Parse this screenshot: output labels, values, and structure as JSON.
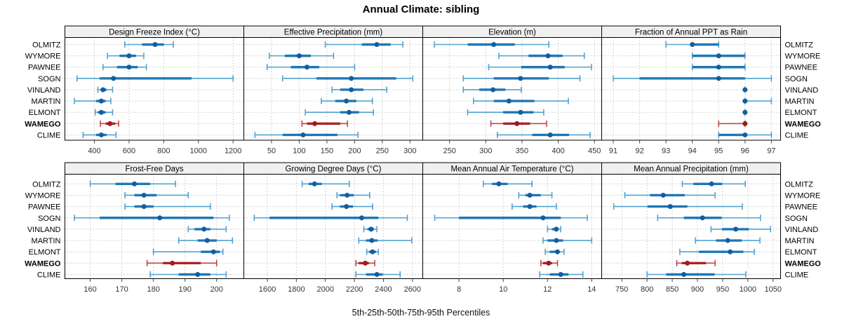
{
  "title": "Annual Climate: sibling",
  "caption": "5th-25th-50th-75th-95th Percentiles",
  "sites": [
    "OLMITZ",
    "WYMORE",
    "PAWNEE",
    "SOGN",
    "VINLAND",
    "MARTIN",
    "ELMONT",
    "WAMEGO",
    "CLIME"
  ],
  "highlight_site": "WAMEGO",
  "colors": {
    "blue_line": "#53a2d0",
    "blue_box": "#1f77b4",
    "blue_dot": "#125e9e",
    "red_line": "#c04545",
    "red_box": "#ab2328",
    "red_dot": "#9b1c23",
    "grid": "#c6c6c6",
    "strip_bg": "#f0f0f0",
    "panel_border": "#000000",
    "tick_text": "#333333"
  },
  "chart_data": {
    "type": "dotplot-interval-grid",
    "title": "Annual Climate: sibling",
    "xlabel": "5th-25th-50th-75th-95th Percentiles",
    "categories": [
      "OLMITZ",
      "WYMORE",
      "PAWNEE",
      "SOGN",
      "VINLAND",
      "MARTIN",
      "ELMONT",
      "WAMEGO",
      "CLIME"
    ],
    "percentiles": [
      5,
      25,
      50,
      75,
      95
    ],
    "legend": "none",
    "grid": "dotted",
    "panels": [
      {
        "title": "Design Freeze Index (°C)",
        "xlim": [
          230,
          1262
        ],
        "ticks": [
          400,
          600,
          800,
          1000,
          1200
        ],
        "values": [
          [
            575,
            675,
            750,
            800,
            855
          ],
          [
            475,
            545,
            600,
            640,
            685
          ],
          [
            450,
            530,
            600,
            650,
            700
          ],
          [
            300,
            430,
            510,
            960,
            1200
          ],
          [
            420,
            435,
            450,
            470,
            505
          ],
          [
            285,
            410,
            440,
            465,
            495
          ],
          [
            405,
            420,
            440,
            465,
            505
          ],
          [
            435,
            465,
            490,
            520,
            540
          ],
          [
            335,
            410,
            440,
            470,
            525
          ]
        ]
      },
      {
        "title": "Effective Precipitation (mm)",
        "xlim": [
          0,
          323
        ],
        "ticks": [
          50,
          100,
          150,
          200,
          250,
          300
        ],
        "values": [
          [
            147,
            213,
            240,
            265,
            287
          ],
          [
            46,
            74,
            100,
            121,
            162
          ],
          [
            42,
            85,
            114,
            136,
            200
          ],
          [
            70,
            131,
            194,
            275,
            305
          ],
          [
            159,
            174,
            194,
            216,
            258
          ],
          [
            140,
            165,
            185,
            203,
            232
          ],
          [
            111,
            174,
            190,
            208,
            234
          ],
          [
            105,
            114,
            128,
            174,
            187
          ],
          [
            20,
            70,
            107,
            169,
            206
          ]
        ]
      },
      {
        "title": "Elevation (m)",
        "xlim": [
          213,
          460
        ],
        "ticks": [
          250,
          300,
          350,
          400,
          450
        ],
        "values": [
          [
            229,
            275,
            311,
            340,
            387
          ],
          [
            318,
            359,
            386,
            406,
            436
          ],
          [
            304,
            349,
            389,
            409,
            446
          ],
          [
            269,
            311,
            348,
            387,
            430
          ],
          [
            269,
            291,
            310,
            327,
            349
          ],
          [
            283,
            311,
            332,
            367,
            414
          ],
          [
            275,
            324,
            348,
            366,
            380
          ],
          [
            307,
            324,
            343,
            361,
            384
          ],
          [
            316,
            364,
            389,
            415,
            444
          ]
        ]
      },
      {
        "title": "Fraction of Annual PPT as Rain",
        "xlim": [
          90.56,
          97.35
        ],
        "ticks": [
          91,
          92,
          93,
          94,
          95,
          96,
          97
        ],
        "values": [
          [
            93,
            94,
            94,
            95,
            95
          ],
          [
            94,
            94,
            95,
            96,
            96
          ],
          [
            94,
            94,
            95,
            96,
            96
          ],
          [
            91,
            92,
            95,
            96,
            97
          ],
          [
            96,
            96,
            96,
            96,
            96
          ],
          [
            96,
            96,
            96,
            96,
            97
          ],
          [
            96,
            96,
            96,
            96,
            96
          ],
          [
            95,
            96,
            96,
            96,
            96
          ],
          [
            95,
            95,
            96,
            96,
            97
          ]
        ]
      },
      {
        "title": "Frost-Free Days",
        "xlim": [
          152,
          208.6
        ],
        "ticks": [
          160,
          170,
          180,
          190,
          200
        ],
        "values": [
          [
            160,
            168,
            174,
            179,
            187
          ],
          [
            171,
            174,
            177,
            181,
            191
          ],
          [
            171,
            174,
            177,
            180,
            198
          ],
          [
            155,
            163,
            182,
            199,
            204
          ],
          [
            191,
            193,
            196,
            198,
            203
          ],
          [
            188,
            194,
            197,
            200,
            205
          ],
          [
            180,
            195,
            199,
            201,
            202
          ],
          [
            178,
            183,
            186,
            195,
            200
          ],
          [
            179,
            188,
            194,
            198,
            203
          ]
        ]
      },
      {
        "title": "Growing Degree Days (°C)",
        "xlim": [
          1438,
          2671
        ],
        "ticks": [
          1600,
          1800,
          2000,
          2200,
          2400,
          2600
        ],
        "values": [
          [
            1840,
            1885,
            1925,
            1975,
            2165
          ],
          [
            2080,
            2100,
            2150,
            2195,
            2305
          ],
          [
            2045,
            2100,
            2145,
            2190,
            2325
          ],
          [
            1510,
            1615,
            2250,
            2365,
            2565
          ],
          [
            2265,
            2290,
            2315,
            2335,
            2355
          ],
          [
            2230,
            2280,
            2320,
            2360,
            2595
          ],
          [
            2285,
            2300,
            2325,
            2350,
            2365
          ],
          [
            2210,
            2230,
            2275,
            2300,
            2340
          ],
          [
            2210,
            2280,
            2355,
            2395,
            2515
          ]
        ]
      },
      {
        "title": "Mean Annual Air Temperature (°C)",
        "xlim": [
          6.36,
          14.45
        ],
        "ticks": [
          8,
          10,
          12,
          14
        ],
        "values": [
          [
            9.1,
            9.5,
            9.8,
            10.2,
            11.3
          ],
          [
            10.7,
            11.0,
            11.2,
            11.7,
            12.2
          ],
          [
            10.4,
            10.9,
            11.2,
            11.5,
            12.4
          ],
          [
            6.9,
            8.0,
            11.8,
            12.6,
            13.8
          ],
          [
            12.0,
            12.2,
            12.4,
            12.5,
            12.6
          ],
          [
            11.8,
            12.0,
            12.4,
            12.7,
            14.0
          ],
          [
            11.9,
            12.1,
            12.45,
            12.55,
            12.75
          ],
          [
            11.7,
            11.8,
            12.05,
            12.2,
            12.45
          ],
          [
            11.65,
            12.1,
            12.6,
            12.95,
            13.6
          ]
        ]
      },
      {
        "title": "Mean Annual Precipitation (mm)",
        "xlim": [
          710,
          1065
        ],
        "ticks": [
          750,
          800,
          850,
          900,
          950,
          1000,
          1050
        ],
        "values": [
          [
            870,
            892,
            928,
            949,
            995
          ],
          [
            756,
            806,
            832,
            875,
            935
          ],
          [
            734,
            801,
            846,
            880,
            989
          ],
          [
            821,
            873,
            910,
            948,
            1025
          ],
          [
            927,
            949,
            976,
            1002,
            1045
          ],
          [
            896,
            937,
            960,
            988,
            1024
          ],
          [
            865,
            903,
            965,
            991,
            1013
          ],
          [
            859,
            869,
            880,
            917,
            935
          ],
          [
            800,
            838,
            873,
            934,
            996
          ]
        ]
      }
    ]
  }
}
